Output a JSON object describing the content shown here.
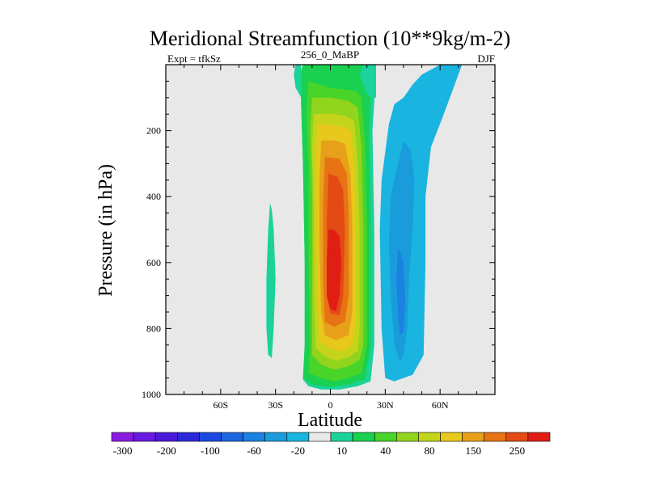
{
  "chart_data": {
    "type": "heatmap",
    "title": "Meridional Streamfunction (10**9kg/m-2)",
    "subtitle_left": "Expt = tfkSz",
    "subtitle_center": "256_0_MaBP",
    "subtitle_right": "DJF",
    "xlabel": "Latitude",
    "ylabel": "Pressure (in hPa)",
    "xlim": [
      -90,
      90
    ],
    "ylim": [
      1000,
      0
    ],
    "x_ticks": [
      {
        "value": -60,
        "label": "60S"
      },
      {
        "value": -30,
        "label": "30S"
      },
      {
        "value": 0,
        "label": "0"
      },
      {
        "value": 30,
        "label": "30N"
      },
      {
        "value": 60,
        "label": "60N"
      }
    ],
    "y_ticks": [
      {
        "value": 200,
        "label": "200"
      },
      {
        "value": 400,
        "label": "400"
      },
      {
        "value": 600,
        "label": "600"
      },
      {
        "value": 800,
        "label": "800"
      },
      {
        "value": 1000,
        "label": "1000"
      }
    ],
    "background_color": "#e8e8e8",
    "colorbar": {
      "levels": [
        -300,
        -250,
        -200,
        -150,
        -100,
        -80,
        -60,
        -40,
        -20,
        -10,
        10,
        20,
        40,
        60,
        80,
        100,
        150,
        200,
        250,
        300
      ],
      "labels": [
        "-300",
        "-200",
        "-100",
        "-60",
        "-20",
        "10",
        "40",
        "80",
        "150",
        "250"
      ],
      "label_levels": [
        -300,
        -200,
        -100,
        -60,
        -20,
        10,
        40,
        80,
        150,
        250
      ],
      "colors": [
        "#8a1ae0",
        "#6a1ae0",
        "#4a1ad8",
        "#2a28d8",
        "#1a4ae0",
        "#1a66e0",
        "#1a82e0",
        "#1a9cdc",
        "#1ab4e0",
        "#e8e8e8",
        "#1ad29a",
        "#1ad050",
        "#48d428",
        "#90d41e",
        "#c4d41a",
        "#e8c81a",
        "#e8a01a",
        "#e67414",
        "#e44a14",
        "#e01e14"
      ]
    },
    "regions": [
      {
        "name": "main-cell-outer",
        "value": 10,
        "color": "#1ad29a",
        "polygon": [
          [
            -15,
            1
          ],
          [
            -16,
            20
          ],
          [
            -16,
            120
          ],
          [
            -15,
            300
          ],
          [
            -14,
            600
          ],
          [
            -14,
            850
          ],
          [
            -15,
            955
          ],
          [
            -12,
            975
          ],
          [
            -5,
            985
          ],
          [
            5,
            985
          ],
          [
            15,
            975
          ],
          [
            22,
            960
          ],
          [
            24,
            850
          ],
          [
            24,
            500
          ],
          [
            23,
            200
          ],
          [
            25,
            30
          ],
          [
            25,
            0
          ]
        ]
      },
      {
        "name": "main-cell-20",
        "value": 20,
        "color": "#1ad050",
        "polygon": [
          [
            -15,
            1
          ],
          [
            -16,
            20
          ],
          [
            -16,
            120
          ],
          [
            -15,
            300
          ],
          [
            -14,
            600
          ],
          [
            -14,
            850
          ],
          [
            -15,
            950
          ],
          [
            -10,
            970
          ],
          [
            0,
            978
          ],
          [
            10,
            970
          ],
          [
            19,
            955
          ],
          [
            22,
            850
          ],
          [
            22,
            500
          ],
          [
            21,
            200
          ],
          [
            23,
            30
          ],
          [
            18,
            0
          ]
        ]
      },
      {
        "name": "main-cell-40",
        "value": 40,
        "color": "#48d428",
        "polygon": [
          [
            -12,
            50
          ],
          [
            -13,
            150
          ],
          [
            -12,
            300
          ],
          [
            -12,
            600
          ],
          [
            -11,
            850
          ],
          [
            -12,
            935
          ],
          [
            -5,
            950
          ],
          [
            2,
            960
          ],
          [
            10,
            950
          ],
          [
            17,
            935
          ],
          [
            20,
            850
          ],
          [
            20,
            500
          ],
          [
            19,
            250
          ],
          [
            17,
            100
          ],
          [
            14,
            80
          ],
          [
            8,
            75
          ],
          [
            0,
            70
          ]
        ]
      },
      {
        "name": "main-cell-60",
        "value": 60,
        "color": "#90d41e",
        "polygon": [
          [
            -10,
            100
          ],
          [
            -11,
            200
          ],
          [
            -10,
            400
          ],
          [
            -10,
            700
          ],
          [
            -10,
            880
          ],
          [
            -5,
            910
          ],
          [
            2,
            925
          ],
          [
            10,
            915
          ],
          [
            16,
            895
          ],
          [
            18,
            850
          ],
          [
            18,
            500
          ],
          [
            17,
            250
          ],
          [
            15,
            130
          ],
          [
            10,
            110
          ],
          [
            0,
            100
          ]
        ]
      },
      {
        "name": "main-cell-80",
        "value": 80,
        "color": "#c4d41a",
        "polygon": [
          [
            -9,
            150
          ],
          [
            -10,
            250
          ],
          [
            -9,
            450
          ],
          [
            -9,
            700
          ],
          [
            -8,
            860
          ],
          [
            -3,
            885
          ],
          [
            3,
            898
          ],
          [
            10,
            888
          ],
          [
            15,
            868
          ],
          [
            16,
            800
          ],
          [
            16,
            500
          ],
          [
            15,
            300
          ],
          [
            13,
            170
          ],
          [
            8,
            155
          ],
          [
            0,
            148
          ]
        ]
      },
      {
        "name": "main-cell-100",
        "value": 100,
        "color": "#e8c81a",
        "polygon": [
          [
            -7,
            180
          ],
          [
            -8,
            300
          ],
          [
            -8,
            500
          ],
          [
            -7,
            700
          ],
          [
            -6,
            840
          ],
          [
            0,
            860
          ],
          [
            6,
            870
          ],
          [
            12,
            850
          ],
          [
            14,
            780
          ],
          [
            14,
            500
          ],
          [
            13,
            300
          ],
          [
            11,
            200
          ],
          [
            5,
            185
          ]
        ]
      },
      {
        "name": "main-cell-150",
        "value": 150,
        "color": "#e8a01a",
        "polygon": [
          [
            -5,
            230
          ],
          [
            -6,
            350
          ],
          [
            -6,
            550
          ],
          [
            -5,
            750
          ],
          [
            -3,
            820
          ],
          [
            3,
            835
          ],
          [
            10,
            820
          ],
          [
            12,
            750
          ],
          [
            12,
            500
          ],
          [
            11,
            330
          ],
          [
            8,
            240
          ],
          [
            2,
            230
          ]
        ]
      },
      {
        "name": "main-cell-200",
        "value": 200,
        "color": "#e67414",
        "polygon": [
          [
            -3,
            280
          ],
          [
            -4,
            420
          ],
          [
            -4,
            650
          ],
          [
            -3,
            780
          ],
          [
            2,
            795
          ],
          [
            8,
            780
          ],
          [
            10,
            700
          ],
          [
            10,
            450
          ],
          [
            9,
            330
          ],
          [
            5,
            285
          ]
        ]
      },
      {
        "name": "main-cell-250",
        "value": 250,
        "color": "#e44a14",
        "polygon": [
          [
            -1,
            330
          ],
          [
            -2,
            480
          ],
          [
            -2,
            700
          ],
          [
            0,
            755
          ],
          [
            5,
            760
          ],
          [
            7,
            700
          ],
          [
            8,
            500
          ],
          [
            7,
            380
          ],
          [
            4,
            340
          ]
        ]
      },
      {
        "name": "main-cell-300",
        "value": 300,
        "color": "#e01e14",
        "polygon": [
          [
            -1,
            500
          ],
          [
            -2,
            600
          ],
          [
            -2,
            700
          ],
          [
            0,
            740
          ],
          [
            3,
            748
          ],
          [
            5,
            700
          ],
          [
            6,
            600
          ],
          [
            5,
            520
          ],
          [
            2,
            500
          ]
        ]
      },
      {
        "name": "top-left-strip",
        "value": 10,
        "color": "#1ad29a",
        "polygon": [
          [
            -19,
            0
          ],
          [
            -20,
            30
          ],
          [
            -19,
            70
          ],
          [
            -16,
            100
          ],
          [
            -16,
            0
          ]
        ]
      },
      {
        "name": "top-center-strip",
        "value": 10,
        "color": "#1ad29a",
        "polygon": [
          [
            18,
            0
          ],
          [
            16,
            30
          ],
          [
            18,
            60
          ],
          [
            20,
            90
          ],
          [
            22,
            100
          ],
          [
            25,
            100
          ],
          [
            25,
            0
          ]
        ]
      },
      {
        "name": "left-small-cell",
        "value": 10,
        "color": "#1ad29a",
        "polygon": [
          [
            -33,
            420
          ],
          [
            -34,
            500
          ],
          [
            -35,
            650
          ],
          [
            -35,
            800
          ],
          [
            -34,
            880
          ],
          [
            -32,
            890
          ],
          [
            -31,
            800
          ],
          [
            -30,
            650
          ],
          [
            -31,
            500
          ],
          [
            -32,
            440
          ]
        ]
      },
      {
        "name": "right-cell-outer",
        "value": -10,
        "color": "#1ab4e0",
        "polygon": [
          [
            60,
            0
          ],
          [
            50,
            30
          ],
          [
            45,
            60
          ],
          [
            40,
            100
          ],
          [
            35,
            120
          ],
          [
            32,
            180
          ],
          [
            28,
            350
          ],
          [
            27,
            500
          ],
          [
            28,
            800
          ],
          [
            30,
            950
          ],
          [
            35,
            960
          ],
          [
            45,
            940
          ],
          [
            51,
            880
          ],
          [
            52,
            600
          ],
          [
            52,
            400
          ],
          [
            55,
            250
          ],
          [
            62,
            150
          ],
          [
            68,
            60
          ],
          [
            72,
            0
          ]
        ]
      },
      {
        "name": "right-cell-20",
        "value": -20,
        "color": "#1a9cdc",
        "polygon": [
          [
            40,
            230
          ],
          [
            37,
            300
          ],
          [
            33,
            400
          ],
          [
            32,
            550
          ],
          [
            33,
            700
          ],
          [
            35,
            850
          ],
          [
            38,
            900
          ],
          [
            40,
            880
          ],
          [
            42,
            800
          ],
          [
            43,
            650
          ],
          [
            45,
            500
          ],
          [
            46,
            350
          ],
          [
            44,
            260
          ]
        ]
      },
      {
        "name": "right-cell-40",
        "value": -40,
        "color": "#1a82e0",
        "polygon": [
          [
            37,
            560
          ],
          [
            36,
            650
          ],
          [
            37,
            760
          ],
          [
            38,
            820
          ],
          [
            40,
            810
          ],
          [
            41,
            720
          ],
          [
            40,
            600
          ],
          [
            38,
            565
          ]
        ]
      }
    ]
  }
}
